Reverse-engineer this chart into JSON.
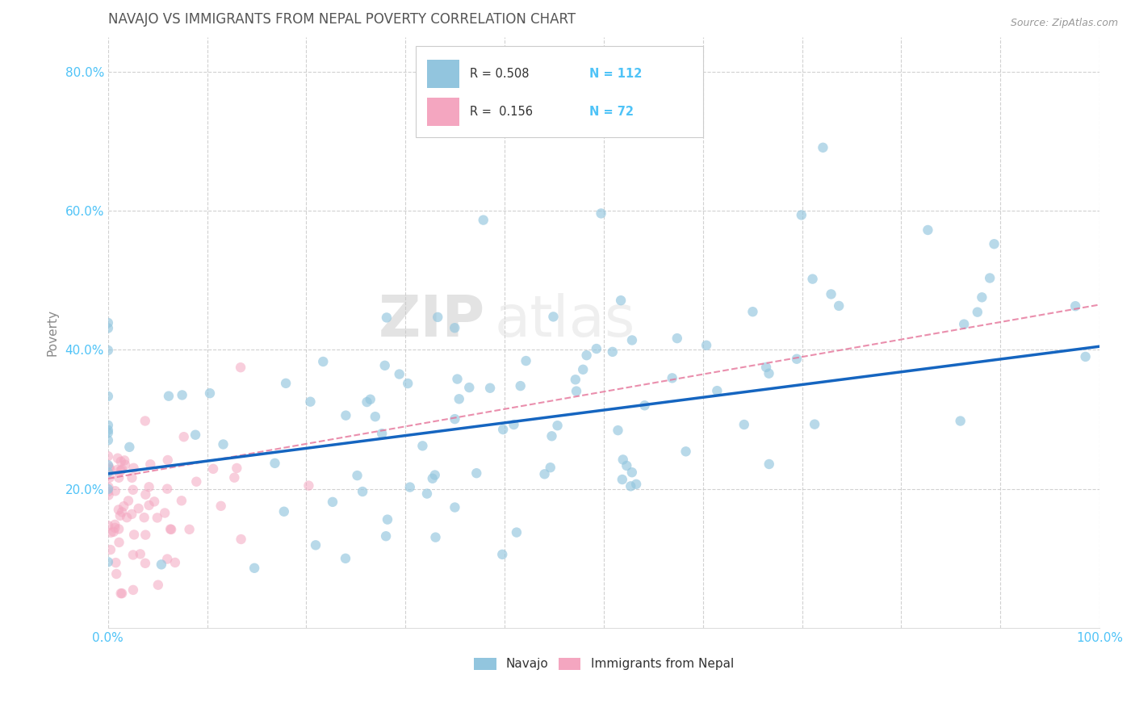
{
  "title": "NAVAJO VS IMMIGRANTS FROM NEPAL POVERTY CORRELATION CHART",
  "source": "Source: ZipAtlas.com",
  "ylabel": "Poverty",
  "xlim": [
    0,
    1.0
  ],
  "ylim": [
    0,
    0.85
  ],
  "xtick_positions": [
    0.0,
    0.1,
    0.2,
    0.3,
    0.4,
    0.5,
    0.6,
    0.7,
    0.8,
    0.9,
    1.0
  ],
  "xticklabels": [
    "0.0%",
    "",
    "",
    "",
    "",
    "",
    "",
    "",
    "",
    "",
    "100.0%"
  ],
  "ytick_positions": [
    0.2,
    0.4,
    0.6,
    0.8
  ],
  "yticklabels": [
    "20.0%",
    "40.0%",
    "60.0%",
    "80.0%"
  ],
  "navajo_color": "#92c5de",
  "nepal_color": "#f4a6c0",
  "navajo_R": 0.508,
  "navajo_N": 112,
  "nepal_R": 0.156,
  "nepal_N": 72,
  "navajo_line_color": "#1565C0",
  "nepal_line_color": "#E57399",
  "legend_label_navajo": "Navajo",
  "legend_label_nepal": "Immigrants from Nepal",
  "watermark_zip": "ZIP",
  "watermark_atlas": "atlas",
  "background_color": "#ffffff",
  "grid_color": "#cccccc",
  "title_color": "#555555",
  "tick_color": "#4FC3F7",
  "navajo_line_y0": 0.222,
  "navajo_line_y1": 0.405,
  "nepal_line_y0": 0.215,
  "nepal_line_y1": 0.27,
  "nepal_line_x1": 0.22
}
